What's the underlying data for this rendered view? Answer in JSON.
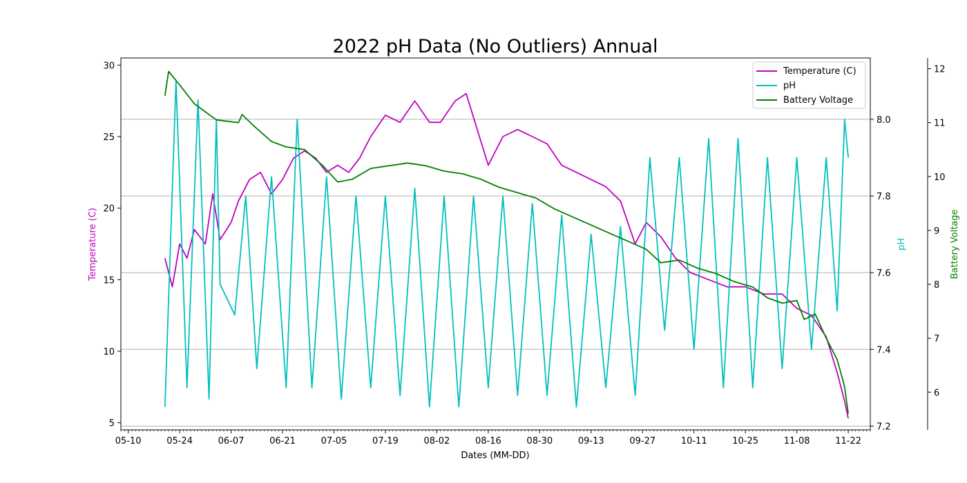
{
  "chart_data": {
    "type": "line",
    "title": "2022 pH Data (No Outliers) Annual",
    "xlabel": "Dates (MM-DD)",
    "ylabel_left": "Temperature (C)",
    "ylabel_right": "pH",
    "ylabel_right2": "Battery Voltage",
    "x_tick_labels": [
      "05-10",
      "05-24",
      "06-07",
      "06-21",
      "07-05",
      "07-19",
      "08-02",
      "08-16",
      "08-30",
      "09-13",
      "09-27",
      "10-11",
      "10-25",
      "11-08",
      "11-22"
    ],
    "x_range": [
      "2022-05-08",
      "2022-11-28"
    ],
    "y_left_range": [
      4.5,
      30.5
    ],
    "y_left_ticks": [
      5,
      10,
      15,
      20,
      25,
      30
    ],
    "y_right_range": [
      7.19,
      8.16
    ],
    "y_right_ticks": [
      7.2,
      7.4,
      7.6,
      7.8,
      8.0
    ],
    "y_right_tick_labels": [
      "7.2",
      "7.4",
      "7.6",
      "7.8",
      "8.0"
    ],
    "y_right2_range": [
      5.3,
      12.2
    ],
    "y_right2_ticks": [
      6,
      7,
      8,
      9,
      10,
      11,
      12
    ],
    "grid": "horizontal (pH axis)",
    "legend_position": "top-right",
    "series": [
      {
        "name": "Temperature (C)",
        "axis": "left",
        "color": "#bf00bf",
        "points": [
          [
            "2022-05-20",
            16.5
          ],
          [
            "2022-05-22",
            14.5
          ],
          [
            "2022-05-24",
            17.5
          ],
          [
            "2022-05-26",
            16.5
          ],
          [
            "2022-05-28",
            18.5
          ],
          [
            "2022-05-31",
            17.5
          ],
          [
            "2022-06-02",
            21.0
          ],
          [
            "2022-06-04",
            17.8
          ],
          [
            "2022-06-07",
            19.0
          ],
          [
            "2022-06-09",
            20.5
          ],
          [
            "2022-06-12",
            22.0
          ],
          [
            "2022-06-15",
            22.5
          ],
          [
            "2022-06-18",
            21.0
          ],
          [
            "2022-06-21",
            22.0
          ],
          [
            "2022-06-24",
            23.5
          ],
          [
            "2022-06-27",
            24.0
          ],
          [
            "2022-06-30",
            23.5
          ],
          [
            "2022-07-03",
            22.5
          ],
          [
            "2022-07-06",
            23.0
          ],
          [
            "2022-07-09",
            22.5
          ],
          [
            "2022-07-12",
            23.5
          ],
          [
            "2022-07-15",
            25.0
          ],
          [
            "2022-07-19",
            26.5
          ],
          [
            "2022-07-23",
            26.0
          ],
          [
            "2022-07-27",
            27.5
          ],
          [
            "2022-07-31",
            26.0
          ],
          [
            "2022-08-03",
            26.0
          ],
          [
            "2022-08-07",
            27.5
          ],
          [
            "2022-08-10",
            28.0
          ],
          [
            "2022-08-13",
            25.5
          ],
          [
            "2022-08-16",
            23.0
          ],
          [
            "2022-08-20",
            25.0
          ],
          [
            "2022-08-24",
            25.5
          ],
          [
            "2022-08-28",
            25.0
          ],
          [
            "2022-09-01",
            24.5
          ],
          [
            "2022-09-05",
            23.0
          ],
          [
            "2022-09-09",
            22.5
          ],
          [
            "2022-09-13",
            22.0
          ],
          [
            "2022-09-17",
            21.5
          ],
          [
            "2022-09-21",
            20.5
          ],
          [
            "2022-09-25",
            17.5
          ],
          [
            "2022-09-28",
            19.0
          ],
          [
            "2022-10-02",
            18.0
          ],
          [
            "2022-10-06",
            16.5
          ],
          [
            "2022-10-10",
            15.5
          ],
          [
            "2022-10-15",
            15.0
          ],
          [
            "2022-10-20",
            14.5
          ],
          [
            "2022-10-25",
            14.5
          ],
          [
            "2022-10-30",
            14.0
          ],
          [
            "2022-11-04",
            14.0
          ],
          [
            "2022-11-08",
            13.0
          ],
          [
            "2022-11-12",
            12.5
          ],
          [
            "2022-11-16",
            11.0
          ],
          [
            "2022-11-19",
            8.5
          ],
          [
            "2022-11-21",
            6.5
          ],
          [
            "2022-11-22",
            5.3
          ]
        ]
      },
      {
        "name": "pH",
        "axis": "right",
        "color": "#00bfbf",
        "points": [
          [
            "2022-05-20",
            7.25
          ],
          [
            "2022-05-23",
            8.1
          ],
          [
            "2022-05-26",
            7.3
          ],
          [
            "2022-05-29",
            8.05
          ],
          [
            "2022-06-01",
            7.27
          ],
          [
            "2022-06-03",
            8.0
          ],
          [
            "2022-06-04",
            7.57
          ],
          [
            "2022-06-08",
            7.49
          ],
          [
            "2022-06-11",
            7.8
          ],
          [
            "2022-06-14",
            7.35
          ],
          [
            "2022-06-18",
            7.85
          ],
          [
            "2022-06-22",
            7.3
          ],
          [
            "2022-06-25",
            8.0
          ],
          [
            "2022-06-29",
            7.3
          ],
          [
            "2022-07-03",
            7.85
          ],
          [
            "2022-07-07",
            7.27
          ],
          [
            "2022-07-11",
            7.8
          ],
          [
            "2022-07-15",
            7.3
          ],
          [
            "2022-07-19",
            7.8
          ],
          [
            "2022-07-23",
            7.28
          ],
          [
            "2022-07-27",
            7.82
          ],
          [
            "2022-07-31",
            7.25
          ],
          [
            "2022-08-04",
            7.8
          ],
          [
            "2022-08-08",
            7.25
          ],
          [
            "2022-08-12",
            7.8
          ],
          [
            "2022-08-16",
            7.3
          ],
          [
            "2022-08-20",
            7.8
          ],
          [
            "2022-08-24",
            7.28
          ],
          [
            "2022-08-28",
            7.78
          ],
          [
            "2022-09-01",
            7.28
          ],
          [
            "2022-09-05",
            7.75
          ],
          [
            "2022-09-09",
            7.25
          ],
          [
            "2022-09-13",
            7.7
          ],
          [
            "2022-09-17",
            7.3
          ],
          [
            "2022-09-21",
            7.72
          ],
          [
            "2022-09-25",
            7.28
          ],
          [
            "2022-09-29",
            7.9
          ],
          [
            "2022-10-03",
            7.45
          ],
          [
            "2022-10-07",
            7.9
          ],
          [
            "2022-10-11",
            7.4
          ],
          [
            "2022-10-15",
            7.95
          ],
          [
            "2022-10-19",
            7.3
          ],
          [
            "2022-10-23",
            7.95
          ],
          [
            "2022-10-27",
            7.3
          ],
          [
            "2022-10-31",
            7.9
          ],
          [
            "2022-11-04",
            7.35
          ],
          [
            "2022-11-08",
            7.9
          ],
          [
            "2022-11-12",
            7.4
          ],
          [
            "2022-11-16",
            7.9
          ],
          [
            "2022-11-19",
            7.5
          ],
          [
            "2022-11-21",
            8.0
          ],
          [
            "2022-11-22",
            7.9
          ]
        ]
      },
      {
        "name": "Battery Voltage",
        "axis": "right2",
        "color": "#007f00",
        "points": [
          [
            "2022-05-20",
            11.5
          ],
          [
            "2022-05-21",
            11.95
          ],
          [
            "2022-05-24",
            11.7
          ],
          [
            "2022-05-28",
            11.35
          ],
          [
            "2022-06-01",
            11.15
          ],
          [
            "2022-06-03",
            11.05
          ],
          [
            "2022-06-09",
            11.0
          ],
          [
            "2022-06-10",
            11.15
          ],
          [
            "2022-06-13",
            10.95
          ],
          [
            "2022-06-18",
            10.65
          ],
          [
            "2022-06-22",
            10.55
          ],
          [
            "2022-06-27",
            10.5
          ],
          [
            "2022-07-02",
            10.2
          ],
          [
            "2022-07-06",
            9.9
          ],
          [
            "2022-07-10",
            9.95
          ],
          [
            "2022-07-15",
            10.15
          ],
          [
            "2022-07-20",
            10.2
          ],
          [
            "2022-07-25",
            10.25
          ],
          [
            "2022-07-30",
            10.2
          ],
          [
            "2022-08-04",
            10.1
          ],
          [
            "2022-08-09",
            10.05
          ],
          [
            "2022-08-14",
            9.95
          ],
          [
            "2022-08-19",
            9.8
          ],
          [
            "2022-08-24",
            9.7
          ],
          [
            "2022-08-29",
            9.6
          ],
          [
            "2022-09-03",
            9.4
          ],
          [
            "2022-09-08",
            9.25
          ],
          [
            "2022-09-13",
            9.1
          ],
          [
            "2022-09-18",
            8.95
          ],
          [
            "2022-09-23",
            8.8
          ],
          [
            "2022-09-28",
            8.65
          ],
          [
            "2022-10-02",
            8.4
          ],
          [
            "2022-10-07",
            8.45
          ],
          [
            "2022-10-12",
            8.3
          ],
          [
            "2022-10-17",
            8.2
          ],
          [
            "2022-10-22",
            8.05
          ],
          [
            "2022-10-27",
            7.95
          ],
          [
            "2022-10-31",
            7.75
          ],
          [
            "2022-11-04",
            7.65
          ],
          [
            "2022-11-08",
            7.7
          ],
          [
            "2022-11-10",
            7.35
          ],
          [
            "2022-11-13",
            7.45
          ],
          [
            "2022-11-16",
            7.0
          ],
          [
            "2022-11-19",
            6.6
          ],
          [
            "2022-11-21",
            6.1
          ],
          [
            "2022-11-22",
            5.6
          ]
        ]
      }
    ]
  }
}
